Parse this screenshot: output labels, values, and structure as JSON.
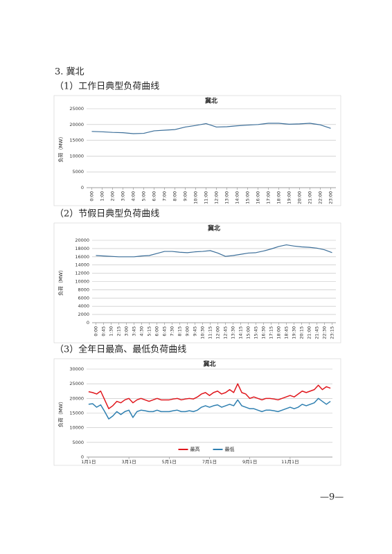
{
  "section_title": "3. 冀北",
  "page_number": "—9—",
  "chart_data": [
    {
      "type": "line",
      "caption": "（1）工作日典型负荷曲线",
      "title": "冀北",
      "ylabel": "负荷（MW）",
      "categories": [
        "0:00",
        "1:00",
        "2:00",
        "3:00",
        "4:00",
        "5:00",
        "6:00",
        "7:00",
        "8:00",
        "9:00",
        "10:00",
        "11:00",
        "12:00",
        "13:00",
        "14:00",
        "15:00",
        "16:00",
        "17:00",
        "18:00",
        "19:00",
        "20:00",
        "21:00",
        "22:00",
        "23:00"
      ],
      "values": [
        17800,
        17700,
        17500,
        17400,
        17100,
        17200,
        18000,
        18200,
        18400,
        19200,
        19700,
        20300,
        19200,
        19300,
        19600,
        19800,
        20000,
        20400,
        20400,
        20100,
        20200,
        20400,
        19900,
        18800
      ],
      "color": "#3b6e99",
      "ylim": [
        0,
        25000
      ],
      "yticks": [
        0,
        5000,
        10000,
        15000,
        20000,
        25000
      ],
      "grid": true
    },
    {
      "type": "line",
      "caption": "（2）节假日典型负荷曲线",
      "title": "冀北",
      "ylabel": "负荷（MW）",
      "categories": [
        "0:00",
        "0:45",
        "1:30",
        "2:15",
        "3:00",
        "3:45",
        "4:30",
        "5:15",
        "6:00",
        "6:45",
        "7:30",
        "8:15",
        "9:00",
        "9:45",
        "10:30",
        "11:15",
        "12:00",
        "12:45",
        "13:30",
        "14:15",
        "15:00",
        "15:45",
        "16:30",
        "17:15",
        "18:00",
        "18:45",
        "19:30",
        "20:15",
        "21:00",
        "21:45",
        "22:30",
        "23:15"
      ],
      "values": [
        16300,
        16200,
        16100,
        16000,
        16000,
        16000,
        16200,
        16300,
        16800,
        17300,
        17300,
        17100,
        17000,
        17200,
        17300,
        17500,
        16900,
        16100,
        16300,
        16600,
        16900,
        17000,
        17400,
        17900,
        18500,
        18900,
        18600,
        18400,
        18300,
        18100,
        17700,
        17000
      ],
      "color": "#3b6e99",
      "ylim": [
        0,
        20000
      ],
      "yticks": [
        0,
        2000,
        4000,
        6000,
        8000,
        10000,
        12000,
        14000,
        16000,
        18000,
        20000
      ],
      "grid": true
    },
    {
      "type": "line",
      "caption": "（3）全年日最高、最低负荷曲线",
      "title": "冀北",
      "ylabel": "负荷（MW）",
      "categories": [
        "1月1日",
        null,
        null,
        null,
        null,
        null,
        null,
        null,
        null,
        null,
        "3月1日",
        null,
        null,
        null,
        null,
        null,
        null,
        null,
        null,
        null,
        "5月1日",
        null,
        null,
        null,
        null,
        null,
        null,
        null,
        null,
        null,
        "7月1日",
        null,
        null,
        null,
        null,
        null,
        null,
        null,
        null,
        null,
        "9月1日",
        null,
        null,
        null,
        null,
        null,
        null,
        null,
        null,
        null,
        "11月1日",
        null,
        null,
        null,
        null,
        null,
        null,
        null,
        null,
        null,
        null
      ],
      "series": [
        {
          "name": "最高",
          "color": "#e0161c",
          "values": [
            22300,
            22000,
            21500,
            22500,
            19500,
            16500,
            17500,
            19000,
            18500,
            19500,
            20000,
            18500,
            19500,
            20000,
            19500,
            19000,
            19500,
            20000,
            19500,
            19500,
            19500,
            19800,
            20000,
            19500,
            19800,
            20000,
            19800,
            20500,
            21500,
            22000,
            21000,
            22000,
            22500,
            21500,
            22000,
            23000,
            22000,
            25000,
            22000,
            21500,
            20000,
            20500,
            20000,
            19500,
            20000,
            20000,
            19800,
            19500,
            20000,
            20500,
            21000,
            20500,
            21500,
            22500,
            22000,
            22500,
            23000,
            24500,
            23000,
            24000,
            23500
          ]
        },
        {
          "name": "最低",
          "color": "#2e7fb0",
          "values": [
            18000,
            18200,
            17000,
            17800,
            15500,
            13000,
            14000,
            15500,
            14500,
            15500,
            16000,
            13500,
            15500,
            16000,
            15800,
            15500,
            15500,
            16000,
            15500,
            15500,
            15500,
            15800,
            16000,
            15500,
            15500,
            15800,
            15500,
            16000,
            17000,
            17500,
            17000,
            17500,
            17800,
            17000,
            17500,
            18000,
            17500,
            19500,
            17500,
            17000,
            16500,
            16500,
            16000,
            15500,
            16000,
            16000,
            15800,
            15500,
            16000,
            16500,
            17000,
            16500,
            17000,
            18000,
            17500,
            18000,
            18500,
            20000,
            19000,
            18000,
            19000
          ]
        }
      ],
      "ylim": [
        0,
        30000
      ],
      "yticks": [
        0,
        5000,
        10000,
        15000,
        20000,
        25000,
        30000
      ],
      "grid": true,
      "legend": "bottom"
    }
  ]
}
